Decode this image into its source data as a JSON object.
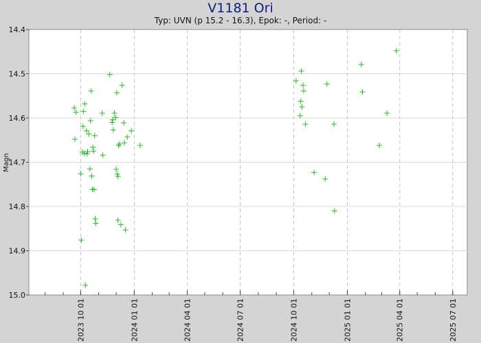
{
  "header": {
    "title": "V1181 Ori",
    "subtitle": "Typ: UVN (p 15.2 - 16.3), Epok: -, Period: -"
  },
  "chart_data": {
    "type": "scatter",
    "title": "V1181 Ori",
    "subtitle": "Typ: UVN (p 15.2 - 16.3), Epok: -, Period: -",
    "xlabel": "",
    "ylabel": "Magn",
    "x_axis": "date",
    "xlim": [
      "2023-07-04",
      "2025-07-26"
    ],
    "ylim": [
      15.0,
      14.4
    ],
    "y_inverted": true,
    "y_ticks": [
      "14.4",
      "14.5",
      "14.6",
      "14.7",
      "14.8",
      "14.9",
      "15.0"
    ],
    "x_ticks": [
      "2023 10 01",
      "2024 01 01",
      "2024 04 01",
      "2024 07 01",
      "2024 10 01",
      "2025 01 01",
      "2025 04 01",
      "2025 07 01"
    ],
    "grid": true,
    "marker": "+",
    "marker_color": "#22bb22",
    "series": [
      {
        "points": [
          [
            "2023-09-20",
            14.577
          ],
          [
            "2023-09-21",
            14.648
          ],
          [
            "2023-09-23",
            14.587
          ],
          [
            "2023-10-01",
            14.726
          ],
          [
            "2023-10-02",
            14.876
          ],
          [
            "2023-10-04",
            14.677
          ],
          [
            "2023-10-05",
            14.619
          ],
          [
            "2023-10-06",
            14.585
          ],
          [
            "2023-10-07",
            14.68
          ],
          [
            "2023-10-08",
            14.568
          ],
          [
            "2023-10-09",
            14.978
          ],
          [
            "2023-10-11",
            14.629
          ],
          [
            "2023-10-12",
            14.681
          ],
          [
            "2023-10-13",
            14.676
          ],
          [
            "2023-10-15",
            14.636
          ],
          [
            "2023-10-17",
            14.715
          ],
          [
            "2023-10-18",
            14.606
          ],
          [
            "2023-10-19",
            14.539
          ],
          [
            "2023-10-20",
            14.731
          ],
          [
            "2023-10-21",
            14.761
          ],
          [
            "2023-10-22",
            14.666
          ],
          [
            "2023-10-23",
            14.675
          ],
          [
            "2023-10-24",
            14.762
          ],
          [
            "2023-10-25",
            14.64
          ],
          [
            "2023-10-26",
            14.828
          ],
          [
            "2023-10-27",
            14.838
          ],
          [
            "2023-11-07",
            14.589
          ],
          [
            "2023-11-08",
            14.684
          ],
          [
            "2023-11-20",
            14.502
          ],
          [
            "2023-11-24",
            14.61
          ],
          [
            "2023-11-25",
            14.604
          ],
          [
            "2023-11-26",
            14.627
          ],
          [
            "2023-11-28",
            14.589
          ],
          [
            "2023-11-30",
            14.599
          ],
          [
            "2023-12-01",
            14.716
          ],
          [
            "2023-12-02",
            14.543
          ],
          [
            "2023-12-03",
            14.727
          ],
          [
            "2023-12-04",
            14.732
          ],
          [
            "2023-12-04",
            14.831
          ],
          [
            "2023-12-05",
            14.662
          ],
          [
            "2023-12-07",
            14.659
          ],
          [
            "2023-12-09",
            14.841
          ],
          [
            "2023-12-11",
            14.526
          ],
          [
            "2023-12-14",
            14.611
          ],
          [
            "2023-12-15",
            14.656
          ],
          [
            "2023-12-17",
            14.853
          ],
          [
            "2023-12-20",
            14.643
          ],
          [
            "2023-12-27",
            14.629
          ],
          [
            "2024-01-11",
            14.662
          ],
          [
            "2024-10-05",
            14.516
          ],
          [
            "2024-10-12",
            14.595
          ],
          [
            "2024-10-13",
            14.562
          ],
          [
            "2024-10-14",
            14.494
          ],
          [
            "2024-10-15",
            14.575
          ],
          [
            "2024-10-17",
            14.526
          ],
          [
            "2024-10-18",
            14.539
          ],
          [
            "2024-10-21",
            14.614
          ],
          [
            "2024-11-05",
            14.723
          ],
          [
            "2024-11-24",
            14.738
          ],
          [
            "2024-11-27",
            14.523
          ],
          [
            "2024-12-09",
            14.614
          ],
          [
            "2024-12-10",
            14.81
          ],
          [
            "2025-01-25",
            14.479
          ],
          [
            "2025-01-27",
            14.541
          ],
          [
            "2025-02-25",
            14.662
          ],
          [
            "2025-03-10",
            14.589
          ],
          [
            "2025-03-26",
            14.448
          ]
        ]
      }
    ]
  }
}
